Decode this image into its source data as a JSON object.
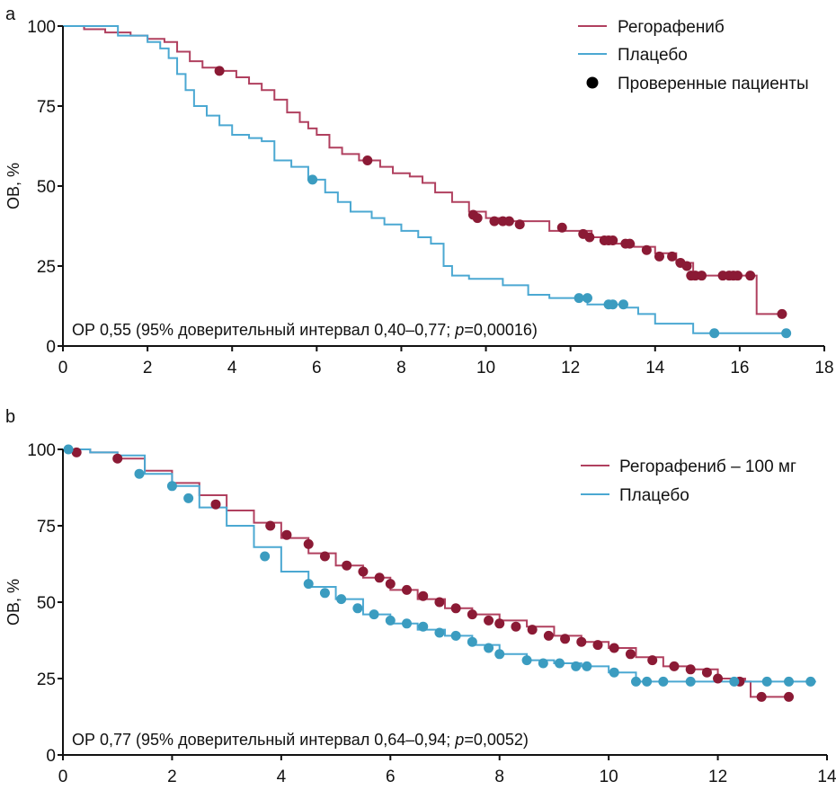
{
  "chart_data": [
    {
      "type": "line",
      "panel_label": "a",
      "title": "",
      "xlabel": "",
      "ylabel": "ОВ, %",
      "xlim": [
        0,
        18
      ],
      "ylim": [
        0,
        100
      ],
      "xticks": [
        0,
        2,
        4,
        6,
        8,
        10,
        12,
        14,
        16,
        18
      ],
      "yticks": [
        0,
        25,
        50,
        75,
        100
      ],
      "grid": false,
      "legend_position": "top-right",
      "legend": [
        {
          "label": "Регорафениб",
          "kind": "line",
          "color": "#b0405f"
        },
        {
          "label": "Плацебо",
          "kind": "line",
          "color": "#4ba8d2"
        },
        {
          "label": "Проверенные пациенты",
          "kind": "marker",
          "color": "#000000"
        }
      ],
      "annotation": {
        "prefix": "ОР 0,55 (95% доверительный интервал 0,40–0,77; ",
        "p_symbol": "p",
        "suffix": "=0,00016)"
      },
      "series": [
        {
          "name": "Регорафениб",
          "color": "#b0405f",
          "marker_color": "#8b1a35",
          "x": [
            0,
            0.5,
            1.0,
            1.3,
            1.6,
            2.0,
            2.4,
            2.7,
            3.0,
            3.3,
            3.7,
            4.1,
            4.4,
            4.7,
            5.0,
            5.3,
            5.6,
            5.8,
            6.0,
            6.3,
            6.6,
            7.0,
            7.5,
            7.8,
            8.2,
            8.5,
            8.8,
            9.2,
            9.6,
            10.0,
            10.5,
            11.0,
            11.5,
            12.0,
            12.5,
            13.0,
            13.5,
            14.0,
            14.5,
            14.9,
            15.5,
            16.3,
            16.4,
            17.0
          ],
          "y": [
            100,
            99,
            98,
            98,
            97,
            96,
            95,
            92,
            89,
            87,
            86,
            84,
            82,
            80,
            77,
            73,
            70,
            68,
            66,
            62,
            60,
            58,
            56,
            54,
            53,
            51,
            48,
            45,
            42,
            40,
            39,
            39,
            36,
            36,
            34,
            32,
            31,
            29,
            26,
            22,
            22,
            22,
            10,
            10
          ],
          "censored_x": [
            3.7,
            7.2,
            9.7,
            9.8,
            10.2,
            10.4,
            10.55,
            10.8,
            11.8,
            12.3,
            12.45,
            12.8,
            12.9,
            13.0,
            13.3,
            13.4,
            13.8,
            14.1,
            14.4,
            14.6,
            14.75,
            14.85,
            14.95,
            15.1,
            15.6,
            15.75,
            15.85,
            15.95,
            16.25,
            17.0
          ],
          "censored_y": [
            86,
            58,
            41,
            40,
            39,
            39,
            39,
            38,
            37,
            35,
            34,
            33,
            33,
            33,
            32,
            32,
            30,
            28,
            28,
            26,
            25,
            22,
            22,
            22,
            22,
            22,
            22,
            22,
            22,
            10
          ]
        },
        {
          "name": "Плацебо",
          "color": "#4ba8d2",
          "marker_color": "#3b9cc0",
          "x": [
            0,
            1.2,
            1.3,
            1.7,
            2.0,
            2.3,
            2.5,
            2.7,
            2.9,
            3.1,
            3.4,
            3.7,
            4.0,
            4.4,
            4.7,
            5.0,
            5.4,
            5.8,
            6.2,
            6.5,
            6.8,
            7.3,
            7.6,
            8.0,
            8.4,
            8.7,
            9.0,
            9.2,
            9.6,
            10.0,
            10.4,
            11.0,
            11.5,
            12.4,
            13.3,
            13.6,
            14.0,
            14.9,
            17.1
          ],
          "y": [
            100,
            100,
            97,
            97,
            95,
            93,
            90,
            85,
            80,
            75,
            72,
            69,
            66,
            65,
            64,
            58,
            56,
            52,
            48,
            45,
            42,
            40,
            38,
            36,
            34,
            32,
            25,
            22,
            21,
            21,
            19,
            16,
            15,
            13,
            12,
            10,
            7,
            4,
            4
          ],
          "censored_x": [
            5.9,
            12.2,
            12.4,
            12.9,
            13.0,
            13.25,
            15.4,
            17.1
          ],
          "censored_y": [
            52,
            15,
            15,
            13,
            13,
            13,
            4,
            4
          ]
        }
      ]
    },
    {
      "type": "line",
      "panel_label": "b",
      "title": "",
      "xlabel": "",
      "ylabel": "ОВ, %",
      "xlim": [
        0,
        14
      ],
      "ylim": [
        0,
        100
      ],
      "xticks": [
        0,
        2,
        4,
        6,
        8,
        10,
        12,
        14
      ],
      "yticks": [
        0,
        25,
        50,
        75,
        100
      ],
      "grid": false,
      "legend_position": "top-right",
      "legend": [
        {
          "label": "Регорафениб – 100 мг",
          "kind": "line",
          "color": "#b0405f"
        },
        {
          "label": "Плацебо",
          "kind": "line",
          "color": "#4ba8d2"
        }
      ],
      "annotation": {
        "prefix": "ОР 0,77 (95% доверительный интервал 0,64–0,94; ",
        "p_symbol": "p",
        "suffix": "=0,0052)"
      },
      "series": [
        {
          "name": "Регорафениб – 100 мг",
          "color": "#b0405f",
          "marker_color": "#8b1a35",
          "x": [
            0,
            0.5,
            1.0,
            1.5,
            2.0,
            2.5,
            3.0,
            3.5,
            4.0,
            4.5,
            5.0,
            5.5,
            6.0,
            6.5,
            7.0,
            7.5,
            8.0,
            8.5,
            9.0,
            9.5,
            10.0,
            10.5,
            11.0,
            11.5,
            12.0,
            12.5,
            12.6,
            13.3
          ],
          "y": [
            100,
            99,
            97,
            93,
            89,
            85,
            80,
            76,
            71,
            66,
            62,
            58,
            54,
            51,
            48,
            46,
            44,
            42,
            39,
            37,
            35,
            32,
            29,
            28,
            25,
            24,
            19,
            19
          ],
          "censored_x": [
            0.25,
            1.0,
            2.8,
            3.8,
            4.1,
            4.5,
            4.8,
            5.2,
            5.5,
            5.8,
            6.0,
            6.3,
            6.6,
            6.9,
            7.2,
            7.5,
            7.8,
            8.0,
            8.3,
            8.6,
            8.9,
            9.2,
            9.5,
            9.8,
            10.1,
            10.4,
            10.8,
            11.2,
            11.5,
            11.8,
            12.0,
            12.4,
            12.8,
            13.3
          ],
          "censored_y": [
            99,
            97,
            82,
            75,
            72,
            69,
            65,
            62,
            60,
            58,
            56,
            54,
            52,
            50,
            48,
            46,
            44,
            43,
            42,
            41,
            39,
            38,
            37,
            36,
            35,
            33,
            31,
            29,
            28,
            27,
            25,
            24,
            19,
            19
          ]
        },
        {
          "name": "Плацебо",
          "color": "#4ba8d2",
          "marker_color": "#3b9cc0",
          "x": [
            0,
            0.5,
            1.0,
            1.5,
            2.0,
            2.5,
            3.0,
            3.5,
            4.0,
            4.5,
            5.0,
            5.5,
            6.0,
            6.5,
            7.0,
            7.5,
            8.0,
            8.5,
            9.0,
            9.5,
            10.0,
            10.5,
            11.0,
            12.0,
            13.8
          ],
          "y": [
            100,
            99,
            98,
            92,
            88,
            81,
            75,
            68,
            60,
            55,
            51,
            46,
            43,
            41,
            39,
            36,
            33,
            31,
            30,
            29,
            27,
            24,
            24,
            24,
            24
          ],
          "censored_x": [
            0.1,
            1.4,
            2.0,
            2.3,
            3.7,
            4.5,
            4.8,
            5.1,
            5.4,
            5.7,
            6.0,
            6.3,
            6.6,
            6.9,
            7.2,
            7.5,
            7.8,
            8.0,
            8.5,
            8.8,
            9.1,
            9.4,
            9.6,
            10.1,
            10.5,
            10.7,
            11.0,
            11.5,
            12.3,
            12.9,
            13.3,
            13.7
          ],
          "censored_y": [
            100,
            92,
            88,
            84,
            65,
            56,
            53,
            51,
            48,
            46,
            44,
            43,
            42,
            40,
            39,
            37,
            35,
            33,
            31,
            30,
            30,
            29,
            29,
            27,
            24,
            24,
            24,
            24,
            24,
            24,
            24,
            24
          ]
        }
      ]
    }
  ]
}
